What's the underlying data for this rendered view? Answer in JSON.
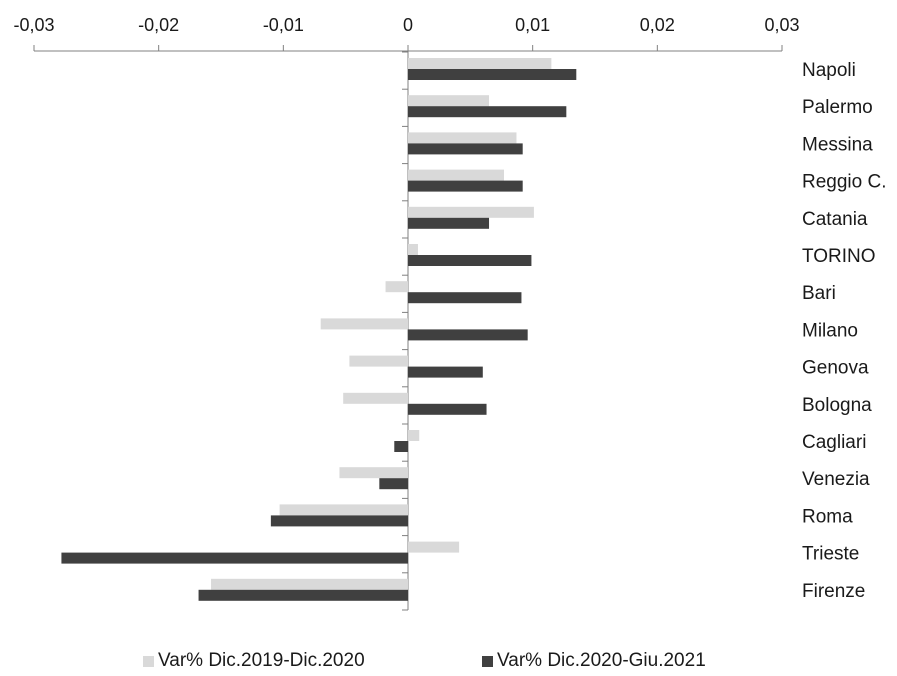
{
  "chart_data": {
    "type": "bar",
    "orientation": "horizontal",
    "title": "",
    "xlabel": "",
    "ylabel": "",
    "xlim": [
      -0.03,
      0.03
    ],
    "x_ticks": [
      -0.03,
      -0.02,
      -0.01,
      0,
      0.01,
      0.02,
      0.03
    ],
    "x_tick_labels": [
      "-0,03",
      "-0,02",
      "-0,01",
      "0",
      "0,01",
      "0,02",
      "0,03"
    ],
    "grid": false,
    "legend_position": "bottom",
    "categories": [
      "Napoli",
      "Palermo",
      "Messina",
      "Reggio C.",
      "Catania",
      "TORINO",
      "Bari",
      "Milano",
      "Genova",
      "Bologna",
      "Cagliari",
      "Venezia",
      "Roma",
      "Trieste",
      "Firenze"
    ],
    "series": [
      {
        "name": "Var% Dic.2019-Dic.2020",
        "color": "#d9d9d9",
        "values": [
          0.0115,
          0.0065,
          0.0087,
          0.0077,
          0.0101,
          0.0008,
          -0.0018,
          -0.007,
          -0.0047,
          -0.0052,
          0.0009,
          -0.0055,
          -0.0103,
          0.0041,
          -0.0158
        ]
      },
      {
        "name": "Var% Dic.2020-Giu.2021",
        "color": "#404040",
        "values": [
          0.0135,
          0.0127,
          0.0092,
          0.0092,
          0.0065,
          0.0099,
          0.0091,
          0.0096,
          0.006,
          0.0063,
          -0.0011,
          -0.0023,
          -0.011,
          -0.0278,
          -0.0168
        ]
      }
    ]
  }
}
